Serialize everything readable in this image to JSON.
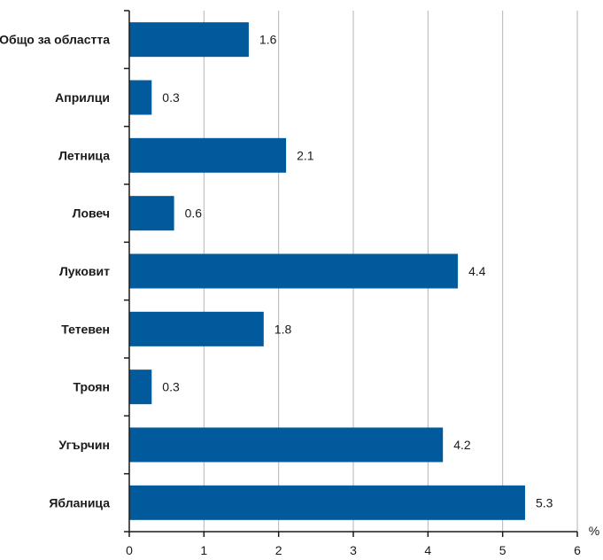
{
  "chart_data": {
    "type": "bar",
    "orientation": "horizontal",
    "categories": [
      "Общо за областта",
      "Априлци",
      "Летница",
      "Ловеч",
      "Луковит",
      "Тетевен",
      "Троян",
      "Угърчин",
      "Ябланица"
    ],
    "values": [
      1.6,
      0.3,
      2.1,
      0.6,
      4.4,
      1.8,
      0.3,
      4.2,
      5.3
    ],
    "value_labels": [
      "1.6",
      "0.3",
      "2.1",
      "0.6",
      "4.4",
      "1.8",
      "0.3",
      "4.2",
      "5.3"
    ],
    "xlim": [
      0,
      6
    ],
    "x_ticks": [
      "0",
      "1",
      "2",
      "3",
      "4",
      "5",
      "6"
    ],
    "x_unit": "%",
    "grid": "vertical",
    "bar_color": "#005a9c",
    "grid_color": "#b3b3b3",
    "axis_color": "#1a1a1a"
  }
}
